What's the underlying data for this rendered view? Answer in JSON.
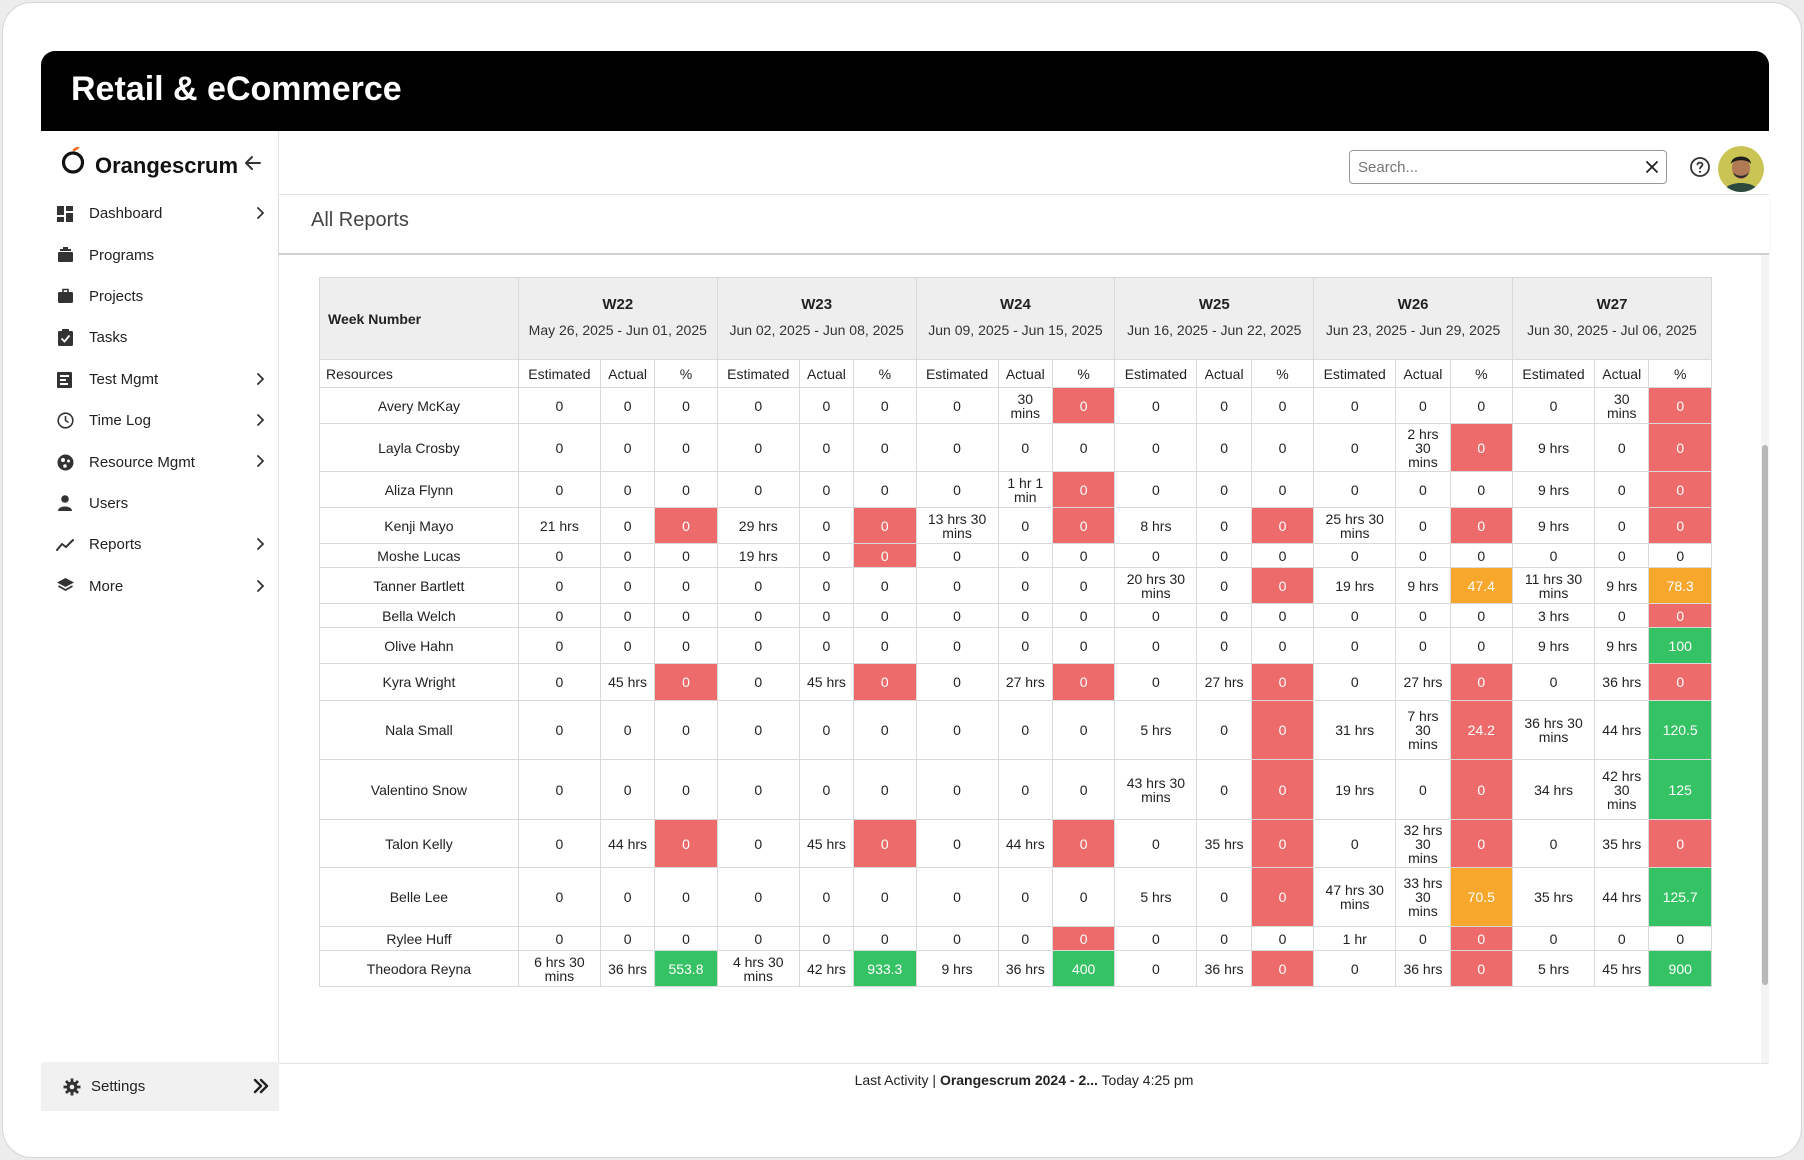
{
  "banner": {
    "title": "Retail & eCommerce"
  },
  "brand": {
    "name": "Orangescrum",
    "accent": "#f26b21"
  },
  "sidebar": {
    "items": [
      {
        "label": "Dashboard",
        "icon": "dashboard-icon",
        "has_submenu": true
      },
      {
        "label": "Programs",
        "icon": "briefcase-stack-icon",
        "has_submenu": false
      },
      {
        "label": "Projects",
        "icon": "briefcase-icon",
        "has_submenu": false
      },
      {
        "label": "Tasks",
        "icon": "clipboard-check-icon",
        "has_submenu": false
      },
      {
        "label": "Test Mgmt",
        "icon": "test-clipboard-icon",
        "has_submenu": true
      },
      {
        "label": "Time Log",
        "icon": "clock-icon",
        "has_submenu": true
      },
      {
        "label": "Resource Mgmt",
        "icon": "resource-globe-icon",
        "has_submenu": true
      },
      {
        "label": "Users",
        "icon": "user-icon",
        "has_submenu": false
      },
      {
        "label": "Reports",
        "icon": "trend-line-icon",
        "has_submenu": true
      },
      {
        "label": "More",
        "icon": "layers-icon",
        "has_submenu": true
      }
    ],
    "settings_label": "Settings"
  },
  "topbar": {
    "search_placeholder": "Search...",
    "search_value": ""
  },
  "page": {
    "title": "All Reports"
  },
  "report": {
    "week_header": "Week Number",
    "resources_header": "Resources",
    "sub_headers": [
      "Estimated",
      "Actual",
      "%"
    ],
    "weeks": [
      {
        "code": "W22",
        "range": "May 26, 2025 - Jun 01, 2025"
      },
      {
        "code": "W23",
        "range": "Jun 02, 2025 - Jun 08, 2025"
      },
      {
        "code": "W24",
        "range": "Jun 09, 2025 - Jun 15, 2025"
      },
      {
        "code": "W25",
        "range": "Jun 16, 2025 - Jun 22, 2025"
      },
      {
        "code": "W26",
        "range": "Jun 23, 2025 - Jun 29, 2025"
      },
      {
        "code": "W27",
        "range": "Jun 30, 2025 - Jul 06, 2025"
      }
    ],
    "status_colors": {
      "red": "#ee6b6b",
      "orange": "#f7a72c",
      "green": "#35c264"
    },
    "rows": [
      {
        "name": "Avery McKay",
        "cells": [
          [
            "0",
            "0",
            "0",
            ""
          ],
          [
            "0",
            "0",
            "0",
            ""
          ],
          [
            "0",
            "30 mins",
            "0",
            "red"
          ],
          [
            "0",
            "0",
            "0",
            ""
          ],
          [
            "0",
            "0",
            "0",
            ""
          ],
          [
            "0",
            "30 mins",
            "0",
            "red"
          ]
        ]
      },
      {
        "name": "Layla Crosby",
        "cells": [
          [
            "0",
            "0",
            "0",
            ""
          ],
          [
            "0",
            "0",
            "0",
            ""
          ],
          [
            "0",
            "0",
            "0",
            ""
          ],
          [
            "0",
            "0",
            "0",
            ""
          ],
          [
            "0",
            "2 hrs 30 mins",
            "0",
            "red"
          ],
          [
            "9 hrs",
            "0",
            "0",
            "red"
          ]
        ]
      },
      {
        "name": "Aliza Flynn",
        "cells": [
          [
            "0",
            "0",
            "0",
            ""
          ],
          [
            "0",
            "0",
            "0",
            ""
          ],
          [
            "0",
            "1 hr 1 min",
            "0",
            "red"
          ],
          [
            "0",
            "0",
            "0",
            ""
          ],
          [
            "0",
            "0",
            "0",
            ""
          ],
          [
            "9 hrs",
            "0",
            "0",
            "red"
          ]
        ]
      },
      {
        "name": "Kenji Mayo",
        "cells": [
          [
            "21 hrs",
            "0",
            "0",
            "red"
          ],
          [
            "29 hrs",
            "0",
            "0",
            "red"
          ],
          [
            "13 hrs 30 mins",
            "0",
            "0",
            "red"
          ],
          [
            "8 hrs",
            "0",
            "0",
            "red"
          ],
          [
            "25 hrs 30 mins",
            "0",
            "0",
            "red"
          ],
          [
            "9 hrs",
            "0",
            "0",
            "red"
          ]
        ]
      },
      {
        "name": "Moshe Lucas",
        "cells": [
          [
            "0",
            "0",
            "0",
            ""
          ],
          [
            "19 hrs",
            "0",
            "0",
            "red"
          ],
          [
            "0",
            "0",
            "0",
            ""
          ],
          [
            "0",
            "0",
            "0",
            ""
          ],
          [
            "0",
            "0",
            "0",
            ""
          ],
          [
            "0",
            "0",
            "0",
            ""
          ]
        ]
      },
      {
        "name": "Tanner Bartlett",
        "cells": [
          [
            "0",
            "0",
            "0",
            ""
          ],
          [
            "0",
            "0",
            "0",
            ""
          ],
          [
            "0",
            "0",
            "0",
            ""
          ],
          [
            "20 hrs 30 mins",
            "0",
            "0",
            "red"
          ],
          [
            "19 hrs",
            "9 hrs",
            "47.4",
            "orange"
          ],
          [
            "11 hrs 30 mins",
            "9 hrs",
            "78.3",
            "orange"
          ]
        ]
      },
      {
        "name": "Bella Welch",
        "cells": [
          [
            "0",
            "0",
            "0",
            ""
          ],
          [
            "0",
            "0",
            "0",
            ""
          ],
          [
            "0",
            "0",
            "0",
            ""
          ],
          [
            "0",
            "0",
            "0",
            ""
          ],
          [
            "0",
            "0",
            "0",
            ""
          ],
          [
            "3 hrs",
            "0",
            "0",
            "red"
          ]
        ]
      },
      {
        "name": "Olive Hahn",
        "cells": [
          [
            "0",
            "0",
            "0",
            ""
          ],
          [
            "0",
            "0",
            "0",
            ""
          ],
          [
            "0",
            "0",
            "0",
            ""
          ],
          [
            "0",
            "0",
            "0",
            ""
          ],
          [
            "0",
            "0",
            "0",
            ""
          ],
          [
            "9 hrs",
            "9 hrs",
            "100",
            "green"
          ]
        ]
      },
      {
        "name": "Kyra Wright",
        "cells": [
          [
            "0",
            "45 hrs",
            "0",
            "red"
          ],
          [
            "0",
            "45 hrs",
            "0",
            "red"
          ],
          [
            "0",
            "27 hrs",
            "0",
            "red"
          ],
          [
            "0",
            "27 hrs",
            "0",
            "red"
          ],
          [
            "0",
            "27 hrs",
            "0",
            "red"
          ],
          [
            "0",
            "36 hrs",
            "0",
            "red"
          ]
        ]
      },
      {
        "name": "Nala Small",
        "cells": [
          [
            "0",
            "0",
            "0",
            ""
          ],
          [
            "0",
            "0",
            "0",
            ""
          ],
          [
            "0",
            "0",
            "0",
            ""
          ],
          [
            "5 hrs",
            "0",
            "0",
            "red"
          ],
          [
            "31 hrs",
            "7 hrs 30 mins",
            "24.2",
            "red"
          ],
          [
            "36 hrs 30 mins",
            "44 hrs",
            "120.5",
            "green"
          ]
        ]
      },
      {
        "name": "Valentino Snow",
        "cells": [
          [
            "0",
            "0",
            "0",
            ""
          ],
          [
            "0",
            "0",
            "0",
            ""
          ],
          [
            "0",
            "0",
            "0",
            ""
          ],
          [
            "43 hrs 30 mins",
            "0",
            "0",
            "red"
          ],
          [
            "19 hrs",
            "0",
            "0",
            "red"
          ],
          [
            "34 hrs",
            "42 hrs 30 mins",
            "125",
            "green"
          ]
        ]
      },
      {
        "name": "Talon Kelly",
        "cells": [
          [
            "0",
            "44 hrs",
            "0",
            "red"
          ],
          [
            "0",
            "45 hrs",
            "0",
            "red"
          ],
          [
            "0",
            "44 hrs",
            "0",
            "red"
          ],
          [
            "0",
            "35 hrs",
            "0",
            "red"
          ],
          [
            "0",
            "32 hrs 30 mins",
            "0",
            "red"
          ],
          [
            "0",
            "35 hrs",
            "0",
            "red"
          ]
        ]
      },
      {
        "name": "Belle Lee",
        "cells": [
          [
            "0",
            "0",
            "0",
            ""
          ],
          [
            "0",
            "0",
            "0",
            ""
          ],
          [
            "0",
            "0",
            "0",
            ""
          ],
          [
            "5 hrs",
            "0",
            "0",
            "red"
          ],
          [
            "47 hrs 30 mins",
            "33 hrs 30 mins",
            "70.5",
            "orange"
          ],
          [
            "35 hrs",
            "44 hrs",
            "125.7",
            "green"
          ]
        ]
      },
      {
        "name": "Rylee Huff",
        "cells": [
          [
            "0",
            "0",
            "0",
            ""
          ],
          [
            "0",
            "0",
            "0",
            ""
          ],
          [
            "0",
            "0",
            "0",
            "red"
          ],
          [
            "0",
            "0",
            "0",
            ""
          ],
          [
            "1 hr",
            "0",
            "0",
            "red"
          ],
          [
            "0",
            "0",
            "0",
            ""
          ]
        ]
      },
      {
        "name": "Theodora Reyna",
        "cells": [
          [
            "6 hrs 30 mins",
            "36 hrs",
            "553.8",
            "green"
          ],
          [
            "4 hrs 30 mins",
            "42 hrs",
            "933.3",
            "green"
          ],
          [
            "9 hrs",
            "36 hrs",
            "400",
            "green"
          ],
          [
            "0",
            "36 hrs",
            "0",
            "red"
          ],
          [
            "0",
            "36 hrs",
            "0",
            "red"
          ],
          [
            "5 hrs",
            "45 hrs",
            "900",
            "green"
          ]
        ]
      }
    ]
  },
  "status_bar": {
    "label": "Last Activity",
    "separator": "|",
    "project": "Orangescrum 2024 - 2...",
    "time": "Today 4:25 pm"
  }
}
